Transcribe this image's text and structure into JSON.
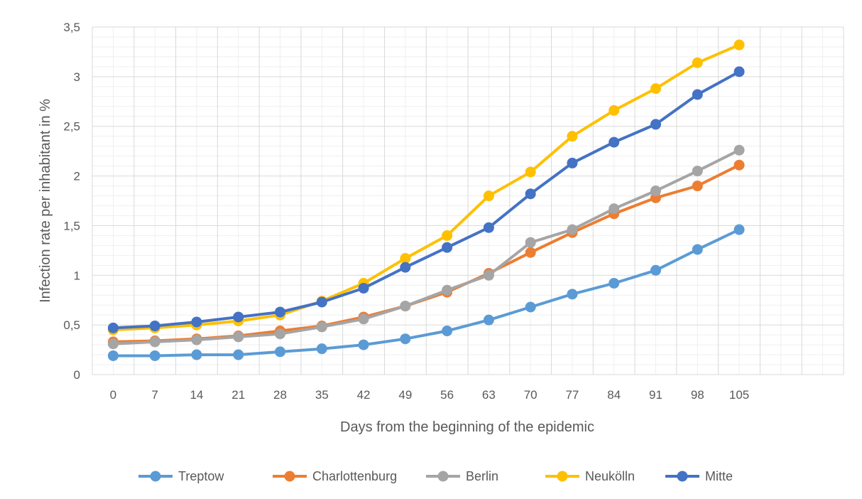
{
  "chart_data": {
    "type": "line",
    "title": "",
    "xlabel": "Days from the beginning of the epidemic",
    "ylabel": "Infection rate per inhabitant in %",
    "categories": [
      "0",
      "7",
      "14",
      "21",
      "28",
      "35",
      "42",
      "49",
      "56",
      "63",
      "70",
      "77",
      "84",
      "91",
      "98",
      "105"
    ],
    "y_tick_labels": [
      "0",
      "0,5",
      "1",
      "1,5",
      "2",
      "2,5",
      "3",
      "3,5"
    ],
    "ylim": [
      0,
      3.5
    ],
    "grid": true,
    "legend_position": "bottom",
    "series": [
      {
        "name": "Treptow",
        "color": "#5B9BD5",
        "values": [
          0.19,
          0.19,
          0.2,
          0.2,
          0.23,
          0.26,
          0.3,
          0.36,
          0.44,
          0.55,
          0.68,
          0.81,
          0.92,
          1.05,
          1.26,
          1.46
        ]
      },
      {
        "name": "Charlottenburg",
        "color": "#ED7D31",
        "values": [
          0.33,
          0.34,
          0.36,
          0.39,
          0.44,
          0.49,
          0.58,
          0.69,
          0.83,
          1.02,
          1.23,
          1.43,
          1.62,
          1.78,
          1.9,
          2.11
        ]
      },
      {
        "name": "Berlin",
        "color": "#A5A5A5",
        "values": [
          0.31,
          0.33,
          0.35,
          0.38,
          0.41,
          0.48,
          0.56,
          0.69,
          0.85,
          1.0,
          1.33,
          1.46,
          1.67,
          1.85,
          2.05,
          2.26
        ]
      },
      {
        "name": "Neukölln",
        "color": "#FFC000",
        "values": [
          0.45,
          0.47,
          0.5,
          0.54,
          0.6,
          0.74,
          0.92,
          1.17,
          1.4,
          1.8,
          2.04,
          2.4,
          2.66,
          2.88,
          3.14,
          3.32
        ]
      },
      {
        "name": "Mitte",
        "color": "#4472C4",
        "values": [
          0.47,
          0.49,
          0.53,
          0.58,
          0.63,
          0.73,
          0.87,
          1.08,
          1.28,
          1.48,
          1.82,
          2.13,
          2.34,
          2.52,
          2.82,
          3.05
        ]
      }
    ]
  }
}
